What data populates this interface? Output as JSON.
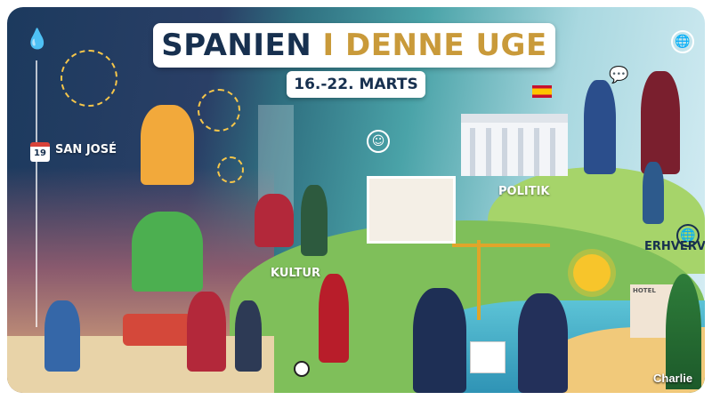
{
  "header": {
    "title_part1": "SPANIEN",
    "title_part2": "I DENNE UGE",
    "date_range": "16.-22. MARTS"
  },
  "sections": [
    {
      "label": "SAN JOSÉ",
      "calendar_day": "19",
      "icon": "calendar-icon"
    },
    {
      "label": "KULTUR",
      "icon": "drama-icon"
    },
    {
      "label": "POLITIK",
      "icon": "speech-bubble-icon"
    },
    {
      "label": "ERHVERV",
      "icon": "globe-icon"
    }
  ],
  "signs": {
    "hotel": "HOTEL"
  },
  "watermark": "Charlie",
  "colors": {
    "navy": "#17304f",
    "gold": "#c99a3a",
    "spain_red": "#c8102e",
    "spain_yellow": "#ffc400"
  }
}
